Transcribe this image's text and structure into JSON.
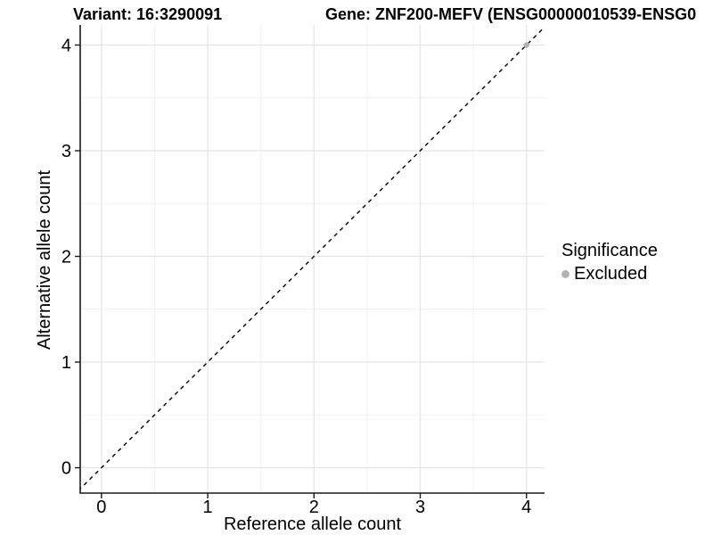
{
  "chart_data": {
    "type": "scatter",
    "title_left": "Variant: 16:3290091",
    "title_right": "Gene: ZNF200-MEFV (ENSG00000010539-ENSG0",
    "xlabel": "Reference allele count",
    "ylabel": "Alternative allele count",
    "x_ticks": [
      0,
      1,
      2,
      3,
      4
    ],
    "y_ticks": [
      0,
      1,
      2,
      3,
      4
    ],
    "xlim": [
      -0.2,
      4.17
    ],
    "ylim": [
      -0.24,
      4.19
    ],
    "grid": {
      "major": true,
      "minor": true,
      "major_color": "#e4e4e4",
      "minor_color": "#f1f1f1"
    },
    "axis_color": "#1a1a1a",
    "identity_line": {
      "type": "abline",
      "slope": 1,
      "intercept": 0,
      "style": "dashed",
      "color": "#000000"
    },
    "series": [
      {
        "name": "Excluded",
        "color": "#b3b3b3",
        "points": [
          {
            "x": 4,
            "y": 4
          }
        ]
      }
    ],
    "legend": {
      "title": "Significance",
      "position": "right",
      "entries": [
        {
          "label": "Excluded",
          "color": "#b3b3b3"
        }
      ]
    }
  }
}
